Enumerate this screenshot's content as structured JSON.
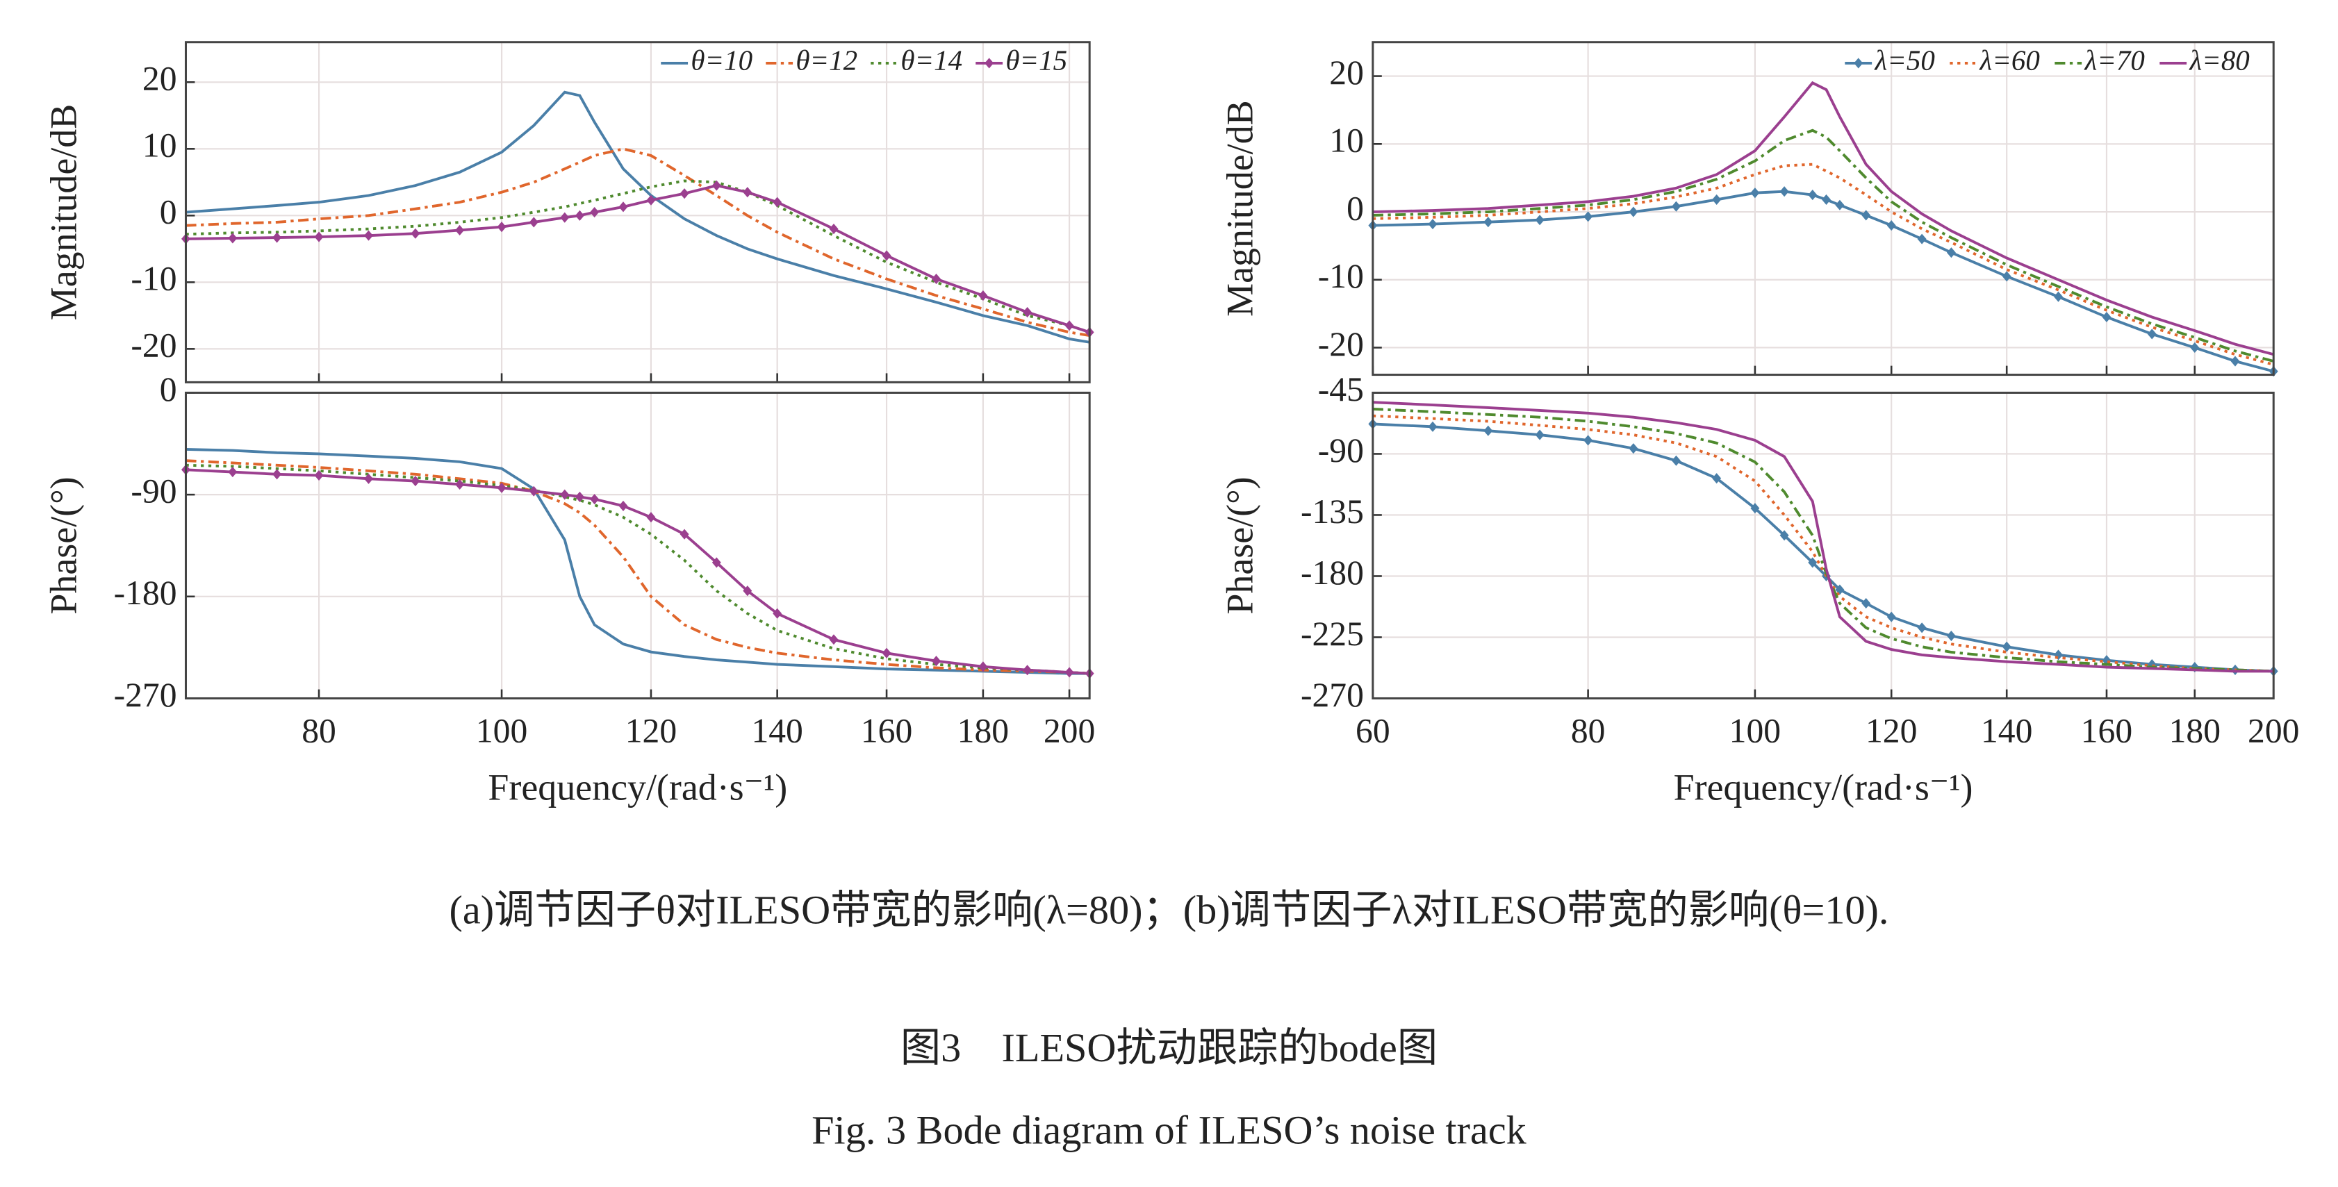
{
  "chart_data": [
    {
      "type": "line",
      "ylabel": "Magnitude/dB",
      "xscale": "log",
      "grid": true,
      "legend": "upper right",
      "x": [
        68,
        72,
        76,
        80,
        85,
        90,
        95,
        100,
        104,
        108,
        110,
        112,
        116,
        120,
        125,
        130,
        135,
        140,
        150,
        160,
        170,
        180,
        190,
        200,
        205
      ],
      "xlim": [
        68,
        205
      ],
      "xticks": [
        80,
        100,
        120,
        140,
        160,
        180,
        200
      ],
      "ylim": [
        -25,
        26
      ],
      "yticks": [
        -20,
        -10,
        0,
        10,
        20
      ],
      "series": [
        {
          "name": "θ=10",
          "color": "#4a7fa8",
          "linestyle": "solid",
          "marker": false,
          "values": [
            0.5,
            1,
            1.5,
            2,
            3,
            4.5,
            6.5,
            9.5,
            13.5,
            18.5,
            18,
            14,
            7,
            3,
            -0.5,
            -3,
            -5,
            -6.5,
            -9,
            -11,
            -13,
            -15,
            -16.5,
            -18.5,
            -19
          ]
        },
        {
          "name": "θ=12",
          "color": "#e0662c",
          "linestyle": "dashdot",
          "marker": false,
          "values": [
            -1.5,
            -1.2,
            -1,
            -0.5,
            0,
            1,
            2,
            3.5,
            5,
            7,
            8,
            9,
            10,
            9,
            6,
            3,
            0,
            -2.5,
            -6.5,
            -9.5,
            -12,
            -14,
            -16,
            -17.5,
            -18
          ]
        },
        {
          "name": "θ=14",
          "color": "#4f8a2e",
          "linestyle": "dot",
          "marker": false,
          "values": [
            -2.8,
            -2.6,
            -2.5,
            -2.3,
            -2,
            -1.6,
            -1,
            -0.3,
            0.5,
            1.3,
            1.8,
            2.3,
            3.3,
            4.3,
            5.2,
            5,
            3.5,
            1.5,
            -3,
            -7,
            -10,
            -12.5,
            -15,
            -16.5,
            -17.5
          ]
        },
        {
          "name": "θ=15",
          "color": "#9b3f8f",
          "linestyle": "solid",
          "marker": true,
          "values": [
            -3.5,
            -3.4,
            -3.3,
            -3.2,
            -3,
            -2.7,
            -2.2,
            -1.7,
            -1,
            -0.3,
            0,
            0.5,
            1.3,
            2.3,
            3.3,
            4.5,
            3.5,
            2,
            -2,
            -6,
            -9.5,
            -12,
            -14.5,
            -16.5,
            -17.5
          ]
        }
      ]
    },
    {
      "type": "line",
      "ylabel": "Phase/(°)",
      "xlabel": "Frequency/(rad·s⁻¹)",
      "xscale": "log",
      "grid": true,
      "x": [
        68,
        72,
        76,
        80,
        85,
        90,
        95,
        100,
        104,
        108,
        110,
        112,
        116,
        120,
        125,
        130,
        135,
        140,
        150,
        160,
        170,
        180,
        190,
        200,
        205
      ],
      "xlim": [
        68,
        205
      ],
      "xticks": [
        80,
        100,
        120,
        140,
        160,
        180,
        200
      ],
      "ylim": [
        -270,
        0
      ],
      "yticks": [
        -270,
        -180,
        -90,
        0
      ],
      "series": [
        {
          "color": "#4a7fa8",
          "linestyle": "solid",
          "marker": false,
          "values": [
            -50,
            -51,
            -53,
            -54,
            -56,
            -58,
            -61,
            -67,
            -85,
            -130,
            -180,
            -205,
            -222,
            -229,
            -233,
            -236,
            -238,
            -240,
            -242,
            -244,
            -245,
            -246,
            -247,
            -248,
            -248
          ]
        },
        {
          "color": "#e0662c",
          "linestyle": "dashdot",
          "marker": false,
          "values": [
            -60,
            -62,
            -64,
            -66,
            -69,
            -72,
            -76,
            -80,
            -87,
            -98,
            -106,
            -117,
            -145,
            -180,
            -205,
            -218,
            -225,
            -230,
            -236,
            -240,
            -243,
            -245,
            -246,
            -247,
            -248
          ]
        },
        {
          "color": "#4f8a2e",
          "linestyle": "dot",
          "marker": false,
          "values": [
            -64,
            -65,
            -67,
            -69,
            -72,
            -75,
            -78,
            -82,
            -86,
            -92,
            -95,
            -99,
            -110,
            -125,
            -148,
            -175,
            -195,
            -210,
            -226,
            -235,
            -240,
            -243,
            -245,
            -247,
            -248
          ]
        },
        {
          "color": "#9b3f8f",
          "linestyle": "solid",
          "marker": true,
          "values": [
            -68,
            -70,
            -72,
            -73,
            -76,
            -78,
            -81,
            -84,
            -87,
            -90,
            -92,
            -94,
            -100,
            -110,
            -125,
            -150,
            -175,
            -195,
            -218,
            -230,
            -237,
            -242,
            -245,
            -247,
            -248
          ]
        }
      ]
    },
    {
      "type": "line",
      "ylabel": "Magnitude/dB",
      "xscale": "log",
      "grid": true,
      "legend": "upper right",
      "x": [
        60,
        65,
        70,
        75,
        80,
        85,
        90,
        95,
        100,
        104,
        108,
        110,
        112,
        116,
        120,
        125,
        130,
        140,
        150,
        160,
        170,
        180,
        190,
        200
      ],
      "xlim": [
        60,
        200
      ],
      "xticks": [
        60,
        80,
        100,
        120,
        140,
        160,
        180,
        200
      ],
      "ylim": [
        -24,
        25
      ],
      "yticks": [
        -20,
        -10,
        0,
        10,
        20
      ],
      "series": [
        {
          "name": "λ=50",
          "color": "#4a7fa8",
          "linestyle": "solid",
          "marker": true,
          "values": [
            -2,
            -1.8,
            -1.5,
            -1.2,
            -0.7,
            0,
            0.8,
            1.8,
            2.8,
            3,
            2.5,
            1.8,
            1,
            -0.5,
            -2,
            -4,
            -6,
            -9.5,
            -12.5,
            -15.5,
            -18,
            -20,
            -22,
            -23.5
          ]
        },
        {
          "name": "λ=60",
          "color": "#e0662c",
          "linestyle": "dot",
          "marker": false,
          "values": [
            -1,
            -0.8,
            -0.5,
            0,
            0.5,
            1.2,
            2.2,
            3.5,
            5.5,
            6.8,
            7,
            6,
            5,
            2.5,
            0,
            -2.5,
            -4.5,
            -8.5,
            -11.5,
            -14.5,
            -17,
            -19,
            -21,
            -22.5
          ]
        },
        {
          "name": "λ=70",
          "color": "#4f8a2e",
          "linestyle": "dashdot",
          "marker": false,
          "values": [
            -0.5,
            -0.3,
            0,
            0.5,
            1,
            1.8,
            3,
            4.8,
            7.5,
            10.5,
            12,
            11,
            9,
            5,
            1.5,
            -1.5,
            -3.8,
            -7.8,
            -11,
            -14,
            -16.5,
            -18.5,
            -20.5,
            -22
          ]
        },
        {
          "name": "λ=80",
          "color": "#9b3f8f",
          "linestyle": "solid",
          "marker": false,
          "values": [
            0,
            0.2,
            0.5,
            1,
            1.5,
            2.3,
            3.5,
            5.5,
            9,
            14,
            19,
            18,
            14,
            7,
            3,
            -0.3,
            -2.8,
            -6.8,
            -10,
            -13,
            -15.5,
            -17.5,
            -19.5,
            -21
          ]
        }
      ]
    },
    {
      "type": "line",
      "ylabel": "Phase/(°)",
      "xlabel": "Frequency/(rad·s⁻¹)",
      "xscale": "log",
      "grid": true,
      "x": [
        60,
        65,
        70,
        75,
        80,
        85,
        90,
        95,
        100,
        104,
        108,
        110,
        112,
        116,
        120,
        125,
        130,
        140,
        150,
        160,
        170,
        180,
        190,
        200
      ],
      "xlim": [
        60,
        200
      ],
      "xticks": [
        60,
        80,
        100,
        120,
        140,
        160,
        180,
        200
      ],
      "ylim": [
        -270,
        -45
      ],
      "yticks": [
        -270,
        -225,
        -180,
        -135,
        -90,
        -45
      ],
      "series": [
        {
          "color": "#4a7fa8",
          "linestyle": "solid",
          "marker": true,
          "values": [
            -68,
            -70,
            -73,
            -76,
            -80,
            -86,
            -95,
            -108,
            -130,
            -150,
            -170,
            -180,
            -190,
            -200,
            -210,
            -218,
            -224,
            -232,
            -238,
            -242,
            -245,
            -247,
            -249,
            -250
          ]
        },
        {
          "color": "#e0662c",
          "linestyle": "dot",
          "marker": false,
          "values": [
            -62,
            -64,
            -66,
            -69,
            -72,
            -76,
            -82,
            -92,
            -110,
            -135,
            -162,
            -180,
            -195,
            -210,
            -218,
            -225,
            -230,
            -236,
            -240,
            -243,
            -246,
            -248,
            -249,
            -250
          ]
        },
        {
          "color": "#4f8a2e",
          "linestyle": "dashdot",
          "marker": false,
          "values": [
            -57,
            -59,
            -61,
            -63,
            -66,
            -70,
            -75,
            -82,
            -96,
            -118,
            -150,
            -178,
            -200,
            -218,
            -226,
            -232,
            -236,
            -240,
            -243,
            -245,
            -247,
            -248,
            -249,
            -250
          ]
        },
        {
          "color": "#9b3f8f",
          "linestyle": "solid",
          "marker": false,
          "values": [
            -52,
            -54,
            -56,
            -58,
            -60,
            -63,
            -67,
            -72,
            -80,
            -92,
            -125,
            -175,
            -210,
            -228,
            -234,
            -238,
            -240,
            -243,
            -245,
            -247,
            -248,
            -249,
            -250,
            -250
          ]
        }
      ]
    }
  ],
  "caption": {
    "subfigures": "(a)调节因子θ对ILESO带宽的影响(λ=80)；(b)调节因子λ对ILESO带宽的影响(θ=10).",
    "title_cn": "图3　ILESO扰动跟踪的bode图",
    "title_en": "Fig. 3  Bode diagram of ILESO’s noise track"
  }
}
